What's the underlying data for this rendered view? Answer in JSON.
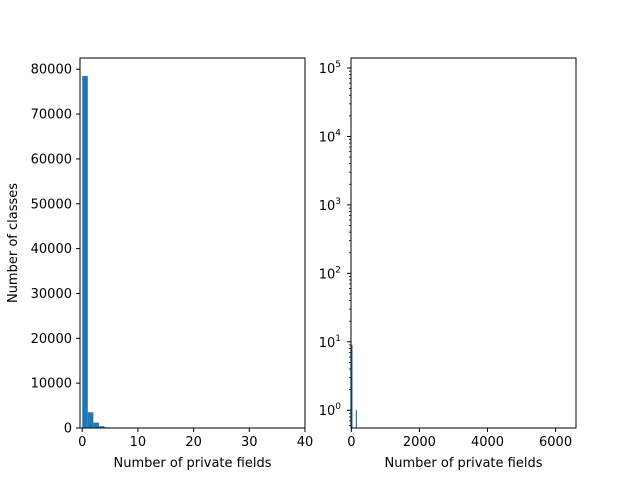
{
  "chart_data": [
    {
      "type": "bar",
      "subtype": "histogram",
      "xlabel": "Number of private fields",
      "ylabel": "Number of classes",
      "xlim": [
        -0.4,
        40
      ],
      "ylim": [
        0,
        82500
      ],
      "x_ticks": [
        0,
        10,
        20,
        30,
        40
      ],
      "y_ticks": [
        0,
        10000,
        20000,
        30000,
        40000,
        50000,
        60000,
        70000,
        80000
      ],
      "bin_width": 1,
      "bins": [
        {
          "x0": 0,
          "x1": 1,
          "value": 78500
        },
        {
          "x0": 1,
          "x1": 2,
          "value": 3500
        },
        {
          "x0": 2,
          "x1": 3,
          "value": 1200
        },
        {
          "x0": 3,
          "x1": 4,
          "value": 400
        },
        {
          "x0": 4,
          "x1": 5,
          "value": 150
        }
      ],
      "color": "#1f77b4",
      "y_scale": "linear"
    },
    {
      "type": "bar",
      "subtype": "histogram",
      "xlabel": "Number of private fields",
      "ylabel": "",
      "xlim": [
        -10,
        6600
      ],
      "ylim_log": [
        0.55,
        140000
      ],
      "x_ticks": [
        0,
        2000,
        4000,
        6000
      ],
      "y_ticks": [
        {
          "value": 1,
          "base": "10",
          "exp": "0"
        },
        {
          "value": 10,
          "base": "10",
          "exp": "1"
        },
        {
          "value": 100,
          "base": "10",
          "exp": "2"
        },
        {
          "value": 1000,
          "base": "10",
          "exp": "3"
        },
        {
          "value": 10000,
          "base": "10",
          "exp": "4"
        },
        {
          "value": 100000,
          "base": "10",
          "exp": "5"
        }
      ],
      "bins": [
        {
          "x0": 0,
          "x1": 30,
          "value": 9
        },
        {
          "x0": 130,
          "x1": 160,
          "value": 1
        }
      ],
      "color": "#1f77b4",
      "y_scale": "log"
    }
  ]
}
